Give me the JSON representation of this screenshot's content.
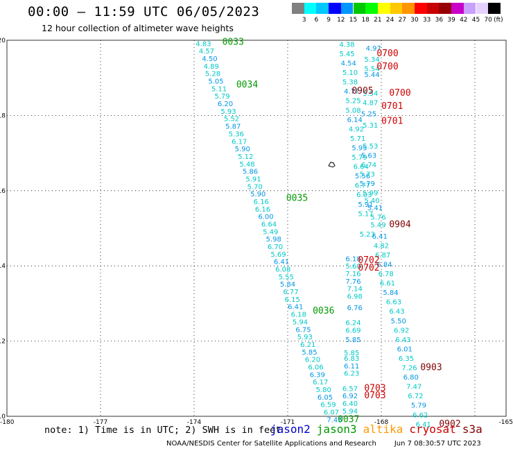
{
  "title": "00:00 – 11:59 UTC 06/05/2023",
  "subtitle": "12 hour collection of altimeter wave heights",
  "colorbar": {
    "colors": [
      "#808080",
      "#00ffff",
      "#00c8ff",
      "#0000ff",
      "#0096ff",
      "#00c800",
      "#00ff00",
      "#ffff00",
      "#ffc800",
      "#ff9600",
      "#ff0000",
      "#c80000",
      "#960000",
      "#c800c8",
      "#c8a0ff",
      "#e6d2ff",
      "#000000"
    ],
    "labels": [
      "3",
      "6",
      "9",
      "12",
      "15",
      "18",
      "21",
      "24",
      "27",
      "30",
      "33",
      "36",
      "39",
      "42",
      "45",
      "70"
    ],
    "unit": "(ft)"
  },
  "axes": {
    "x_ticks": [
      "-180",
      "-177",
      "-174",
      "-171",
      "-168",
      "-165"
    ],
    "y_ticks": [
      "20",
      "18",
      "16",
      "14",
      "12",
      "10"
    ]
  },
  "colors": {
    "jason2": "#0000cc",
    "jason3": "#009900",
    "altika": "#ff9900",
    "cryosat": "#cc0000",
    "s3a": "#800000",
    "swh": "#00c8c8",
    "swh_alt": "#0096e6"
  },
  "chart_data": {
    "type": "scatter",
    "xlim": [
      -180,
      -164
    ],
    "ylim": [
      10,
      20
    ],
    "grid": true,
    "swh_points": [
      {
        "lon": -173.7,
        "lat": 19.92,
        "v": "4.83"
      },
      {
        "lon": -173.6,
        "lat": 19.72,
        "v": "4.57"
      },
      {
        "lon": -173.5,
        "lat": 19.52,
        "v": "4.50"
      },
      {
        "lon": -173.45,
        "lat": 19.32,
        "v": "4.89"
      },
      {
        "lon": -173.4,
        "lat": 19.12,
        "v": "5.28"
      },
      {
        "lon": -173.3,
        "lat": 18.92,
        "v": "5.05"
      },
      {
        "lon": -173.2,
        "lat": 18.72,
        "v": "5.11"
      },
      {
        "lon": -173.1,
        "lat": 18.52,
        "v": "5.79"
      },
      {
        "lon": -173.0,
        "lat": 18.32,
        "v": "6.20"
      },
      {
        "lon": -172.9,
        "lat": 18.12,
        "v": "5.93"
      },
      {
        "lon": -172.8,
        "lat": 17.92,
        "v": "5.52"
      },
      {
        "lon": -172.75,
        "lat": 17.72,
        "v": "5.87"
      },
      {
        "lon": -172.65,
        "lat": 17.52,
        "v": "5.36"
      },
      {
        "lon": -172.55,
        "lat": 17.32,
        "v": "6.17"
      },
      {
        "lon": -172.45,
        "lat": 17.12,
        "v": "5.90"
      },
      {
        "lon": -172.35,
        "lat": 16.92,
        "v": "5.12"
      },
      {
        "lon": -172.3,
        "lat": 16.72,
        "v": "5.48"
      },
      {
        "lon": -172.2,
        "lat": 16.52,
        "v": "5.86"
      },
      {
        "lon": -172.1,
        "lat": 16.32,
        "v": "5.91"
      },
      {
        "lon": -172.05,
        "lat": 16.12,
        "v": "5.70"
      },
      {
        "lon": -171.95,
        "lat": 15.92,
        "v": "5.90"
      },
      {
        "lon": -171.85,
        "lat": 15.72,
        "v": "6.16"
      },
      {
        "lon": -171.8,
        "lat": 15.52,
        "v": "6.16"
      },
      {
        "lon": -171.7,
        "lat": 15.32,
        "v": "6.00"
      },
      {
        "lon": -171.6,
        "lat": 15.12,
        "v": "6.64"
      },
      {
        "lon": -171.55,
        "lat": 14.92,
        "v": "5.49"
      },
      {
        "lon": -171.45,
        "lat": 14.72,
        "v": "5.98"
      },
      {
        "lon": -171.4,
        "lat": 14.52,
        "v": "6.70"
      },
      {
        "lon": -171.3,
        "lat": 14.32,
        "v": "5.69"
      },
      {
        "lon": -171.2,
        "lat": 14.12,
        "v": "6.41"
      },
      {
        "lon": -171.15,
        "lat": 13.92,
        "v": "6.08"
      },
      {
        "lon": -171.05,
        "lat": 13.72,
        "v": "5.55"
      },
      {
        "lon": -171.0,
        "lat": 13.52,
        "v": "5.84"
      },
      {
        "lon": -170.9,
        "lat": 13.32,
        "v": "6.77"
      },
      {
        "lon": -170.85,
        "lat": 13.12,
        "v": "6.15"
      },
      {
        "lon": -170.75,
        "lat": 12.92,
        "v": "6.41"
      },
      {
        "lon": -170.65,
        "lat": 12.72,
        "v": "6.18"
      },
      {
        "lon": -170.6,
        "lat": 12.52,
        "v": "5.94"
      },
      {
        "lon": -170.5,
        "lat": 12.32,
        "v": "6.75"
      },
      {
        "lon": -170.45,
        "lat": 12.12,
        "v": "5.93"
      },
      {
        "lon": -170.35,
        "lat": 11.92,
        "v": "6.21"
      },
      {
        "lon": -170.3,
        "lat": 11.72,
        "v": "5.85"
      },
      {
        "lon": -170.2,
        "lat": 11.52,
        "v": "6.20"
      },
      {
        "lon": -170.1,
        "lat": 11.32,
        "v": "6.06"
      },
      {
        "lon": -170.05,
        "lat": 11.12,
        "v": "6.39"
      },
      {
        "lon": -169.95,
        "lat": 10.92,
        "v": "6.17"
      },
      {
        "lon": -169.85,
        "lat": 10.72,
        "v": "5.80"
      },
      {
        "lon": -169.8,
        "lat": 10.52,
        "v": "6.05"
      },
      {
        "lon": -169.7,
        "lat": 10.32,
        "v": "6.59"
      },
      {
        "lon": -169.6,
        "lat": 10.12,
        "v": "6.07"
      },
      {
        "lon": -169.5,
        "lat": 9.92,
        "v": "7.45"
      },
      {
        "lon": -169.1,
        "lat": 19.9,
        "v": "4.38"
      },
      {
        "lon": -169.1,
        "lat": 19.65,
        "v": "5.45"
      },
      {
        "lon": -169.05,
        "lat": 19.4,
        "v": "4.54"
      },
      {
        "lon": -169.0,
        "lat": 19.15,
        "v": "5.10"
      },
      {
        "lon": -169.0,
        "lat": 18.9,
        "v": "5.38"
      },
      {
        "lon": -168.95,
        "lat": 18.65,
        "v": "4.77"
      },
      {
        "lon": -168.9,
        "lat": 18.4,
        "v": "5.25"
      },
      {
        "lon": -168.9,
        "lat": 18.15,
        "v": "5.08"
      },
      {
        "lon": -168.85,
        "lat": 17.9,
        "v": "6.14"
      },
      {
        "lon": -168.8,
        "lat": 17.65,
        "v": "4.92"
      },
      {
        "lon": -168.75,
        "lat": 17.4,
        "v": "5.71"
      },
      {
        "lon": -168.7,
        "lat": 17.15,
        "v": "5.95"
      },
      {
        "lon": -168.7,
        "lat": 16.9,
        "v": "5.79"
      },
      {
        "lon": -168.65,
        "lat": 16.65,
        "v": "6.64"
      },
      {
        "lon": -168.6,
        "lat": 16.4,
        "v": "5.56"
      },
      {
        "lon": -168.6,
        "lat": 16.15,
        "v": "6.77"
      },
      {
        "lon": -168.55,
        "lat": 15.9,
        "v": "6.03"
      },
      {
        "lon": -168.5,
        "lat": 15.65,
        "v": "5.91"
      },
      {
        "lon": -168.5,
        "lat": 15.4,
        "v": "5.17"
      },
      {
        "lon": -168.45,
        "lat": 14.85,
        "v": "5.23"
      },
      {
        "lon": -168.25,
        "lat": 19.8,
        "v": "4.97"
      },
      {
        "lon": -168.3,
        "lat": 19.5,
        "v": "5.34"
      },
      {
        "lon": -168.3,
        "lat": 19.25,
        "v": "5.54"
      },
      {
        "lon": -168.3,
        "lat": 19.1,
        "v": "5.44"
      },
      {
        "lon": -168.35,
        "lat": 18.6,
        "v": "5.54"
      },
      {
        "lon": -168.35,
        "lat": 18.35,
        "v": "4.87"
      },
      {
        "lon": -168.4,
        "lat": 18.05,
        "v": "5.25"
      },
      {
        "lon": -168.35,
        "lat": 17.75,
        "v": "5.31"
      },
      {
        "lon": -168.35,
        "lat": 17.2,
        "v": "5.53"
      },
      {
        "lon": -168.4,
        "lat": 16.95,
        "v": "5.63"
      },
      {
        "lon": -168.4,
        "lat": 16.7,
        "v": "6.74"
      },
      {
        "lon": -168.45,
        "lat": 16.45,
        "v": "5.73"
      },
      {
        "lon": -168.45,
        "lat": 16.2,
        "v": "5.79"
      },
      {
        "lon": -168.35,
        "lat": 15.95,
        "v": "5.99"
      },
      {
        "lon": -168.3,
        "lat": 15.75,
        "v": "5.40"
      },
      {
        "lon": -168.2,
        "lat": 15.55,
        "v": "5.41"
      },
      {
        "lon": -168.1,
        "lat": 15.3,
        "v": "5.76"
      },
      {
        "lon": -168.1,
        "lat": 15.1,
        "v": "5.49"
      },
      {
        "lon": -168.05,
        "lat": 14.8,
        "v": "6.41"
      },
      {
        "lon": -168.0,
        "lat": 14.55,
        "v": "4.82"
      },
      {
        "lon": -167.95,
        "lat": 14.3,
        "v": "6.87"
      },
      {
        "lon": -167.9,
        "lat": 14.05,
        "v": "6.84"
      },
      {
        "lon": -167.85,
        "lat": 13.8,
        "v": "6.78"
      },
      {
        "lon": -167.8,
        "lat": 13.55,
        "v": "6.61"
      },
      {
        "lon": -167.7,
        "lat": 13.3,
        "v": "5.84"
      },
      {
        "lon": -167.6,
        "lat": 13.05,
        "v": "6.63"
      },
      {
        "lon": -167.5,
        "lat": 12.8,
        "v": "6.43"
      },
      {
        "lon": -167.45,
        "lat": 12.55,
        "v": "5.50"
      },
      {
        "lon": -167.35,
        "lat": 12.3,
        "v": "6.92"
      },
      {
        "lon": -167.3,
        "lat": 12.05,
        "v": "6.43"
      },
      {
        "lon": -167.25,
        "lat": 11.8,
        "v": "6.01"
      },
      {
        "lon": -167.2,
        "lat": 11.55,
        "v": "6.35"
      },
      {
        "lon": -167.1,
        "lat": 11.3,
        "v": "7.26"
      },
      {
        "lon": -167.05,
        "lat": 11.05,
        "v": "6.80"
      },
      {
        "lon": -166.95,
        "lat": 10.8,
        "v": "7.47"
      },
      {
        "lon": -166.9,
        "lat": 10.55,
        "v": "6.72"
      },
      {
        "lon": -166.8,
        "lat": 10.3,
        "v": "5.79"
      },
      {
        "lon": -166.75,
        "lat": 10.05,
        "v": "6.62"
      },
      {
        "lon": -166.65,
        "lat": 9.8,
        "v": "6.41"
      },
      {
        "lon": -168.9,
        "lat": 14.2,
        "v": "6.18"
      },
      {
        "lon": -168.9,
        "lat": 14.0,
        "v": "5.60"
      },
      {
        "lon": -168.9,
        "lat": 13.8,
        "v": "7.16"
      },
      {
        "lon": -168.9,
        "lat": 13.6,
        "v": "7.76"
      },
      {
        "lon": -168.85,
        "lat": 13.4,
        "v": "7.14"
      },
      {
        "lon": -168.85,
        "lat": 13.2,
        "v": "6.98"
      },
      {
        "lon": -168.85,
        "lat": 12.9,
        "v": "6.76"
      },
      {
        "lon": -168.9,
        "lat": 12.5,
        "v": "6.24"
      },
      {
        "lon": -168.9,
        "lat": 12.3,
        "v": "6.69"
      },
      {
        "lon": -168.9,
        "lat": 12.05,
        "v": "5.85"
      },
      {
        "lon": -168.95,
        "lat": 11.7,
        "v": "5.85"
      },
      {
        "lon": -168.95,
        "lat": 11.55,
        "v": "6.83"
      },
      {
        "lon": -168.95,
        "lat": 11.35,
        "v": "6.11"
      },
      {
        "lon": -168.95,
        "lat": 11.15,
        "v": "6.23"
      },
      {
        "lon": -169.0,
        "lat": 10.75,
        "v": "6.57"
      },
      {
        "lon": -169.0,
        "lat": 10.55,
        "v": "6.92"
      },
      {
        "lon": -169.0,
        "lat": 10.35,
        "v": "6.40"
      },
      {
        "lon": -169.0,
        "lat": 10.15,
        "v": "5.94"
      }
    ],
    "pass_times": [
      {
        "lon": -172.75,
        "lat": 19.95,
        "t": "0033",
        "sat": "jason3"
      },
      {
        "lon": -172.3,
        "lat": 18.82,
        "t": "0034",
        "sat": "jason3"
      },
      {
        "lon": -170.7,
        "lat": 15.8,
        "t": "0035",
        "sat": "jason3"
      },
      {
        "lon": -169.85,
        "lat": 12.8,
        "t": "0036",
        "sat": "jason3"
      },
      {
        "lon": -169.05,
        "lat": 9.92,
        "t": "0037",
        "sat": "jason3"
      },
      {
        "lon": -167.8,
        "lat": 19.65,
        "t": "0700",
        "sat": "cryosat"
      },
      {
        "lon": -167.8,
        "lat": 19.3,
        "t": "0700",
        "sat": "cryosat"
      },
      {
        "lon": -167.4,
        "lat": 18.6,
        "t": "0700",
        "sat": "cryosat"
      },
      {
        "lon": -167.65,
        "lat": 18.25,
        "t": "0701",
        "sat": "cryosat"
      },
      {
        "lon": -167.65,
        "lat": 17.85,
        "t": "0701",
        "sat": "cryosat"
      },
      {
        "lon": -168.6,
        "lat": 18.65,
        "t": "0905",
        "sat": "s3a"
      },
      {
        "lon": -167.4,
        "lat": 15.1,
        "t": "0904",
        "sat": "s3a"
      },
      {
        "lon": -168.4,
        "lat": 14.15,
        "t": "0702",
        "sat": "cryosat"
      },
      {
        "lon": -168.4,
        "lat": 13.95,
        "t": "0702",
        "sat": "cryosat"
      },
      {
        "lon": -166.4,
        "lat": 11.3,
        "t": "0903",
        "sat": "s3a"
      },
      {
        "lon": -168.2,
        "lat": 10.75,
        "t": "0703",
        "sat": "cryosat"
      },
      {
        "lon": -168.2,
        "lat": 10.55,
        "t": "0703",
        "sat": "cryosat"
      },
      {
        "lon": -165.8,
        "lat": 9.8,
        "t": "0902",
        "sat": "s3a"
      }
    ],
    "island": {
      "lon": -169.6,
      "lat": 16.7
    }
  },
  "note": "note: 1) Time is in UTC; 2) SWH is in feet",
  "legend": [
    "jason2",
    "jason3",
    "altika",
    "cryosat",
    "s3a"
  ],
  "footer": {
    "source": "NOAA/NESDIS Center for Satellite Applications and Research",
    "datetime": "Jun  7 08:30:57 UTC 2023"
  }
}
